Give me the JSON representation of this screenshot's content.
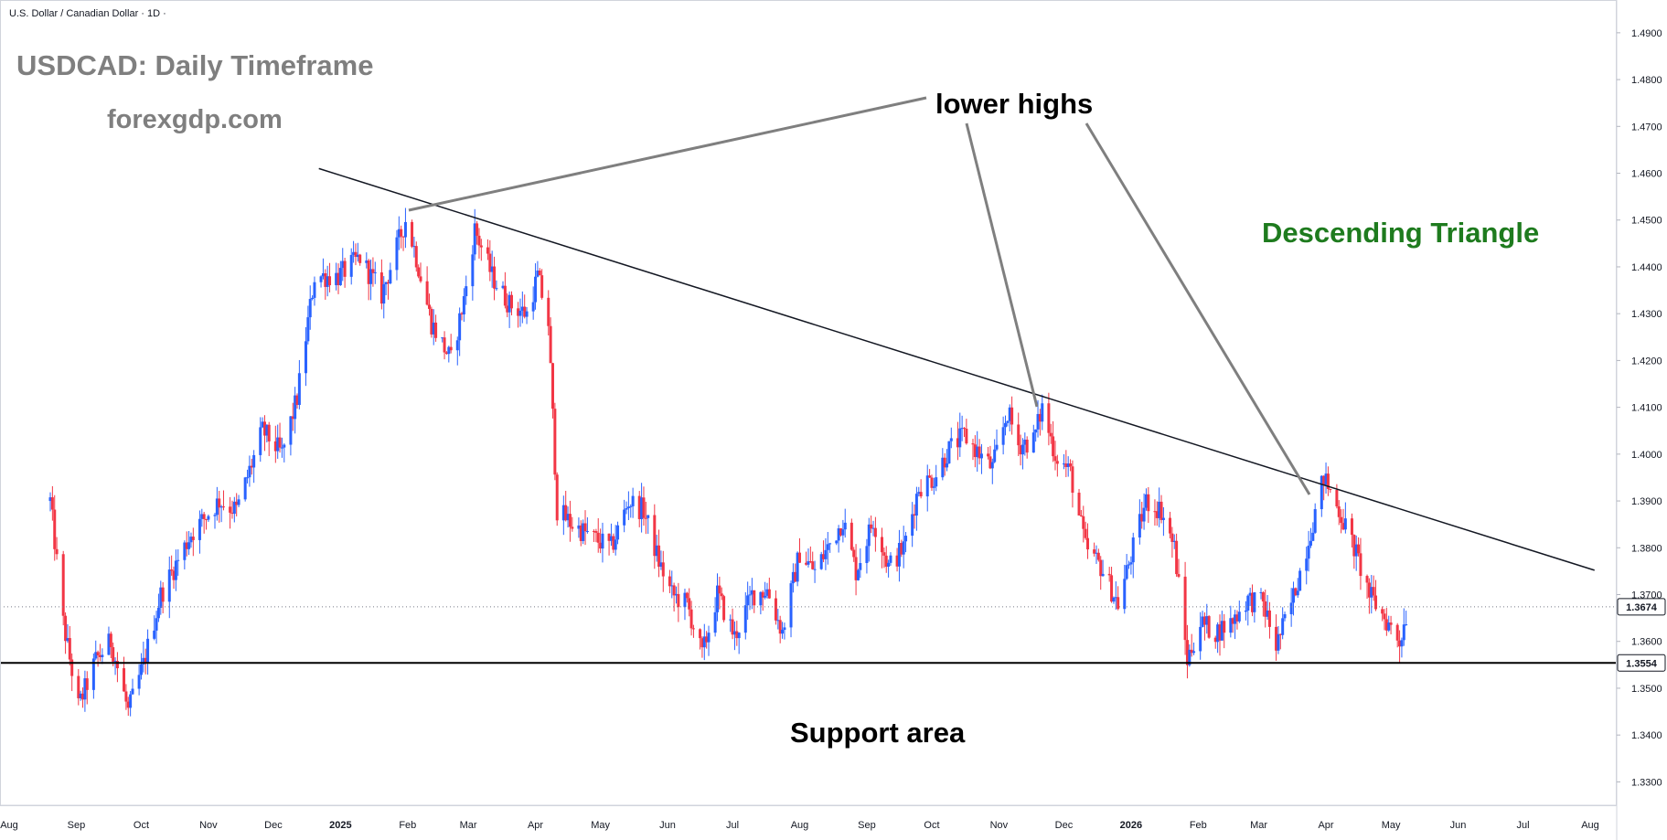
{
  "header": {
    "symbol_label": "U.S. Dollar / Canadian Dollar · 1D ·"
  },
  "annotations": {
    "title": "USDCAD: Daily Timeframe",
    "site": "forexgdp.com",
    "lower_highs": "lower highs",
    "pattern": "Descending Triangle",
    "support": "Support area"
  },
  "colors": {
    "bull": "#2962FF",
    "bear": "#F23645",
    "pattern_label": "#1E7B1E",
    "title_gray": "#7F7F7F",
    "axis_text": "#131722"
  },
  "chart_data": {
    "type": "candlestick",
    "title": "USDCAD: Daily Timeframe",
    "instrument": "U.S. Dollar / Canadian Dollar",
    "timeframe": "1D",
    "ylim": [
      1.325,
      1.497
    ],
    "y_ticks": [
      "1.4900",
      "1.4800",
      "1.4700",
      "1.4600",
      "1.4500",
      "1.4400",
      "1.4300",
      "1.4200",
      "1.4100",
      "1.4000",
      "1.3900",
      "1.3800",
      "1.3700",
      "1.3600",
      "1.3500",
      "1.3400",
      "1.3300"
    ],
    "x_ticks": [
      {
        "label": "Aug",
        "date": "2024-08-01"
      },
      {
        "label": "Sep",
        "date": "2024-09-01"
      },
      {
        "label": "Oct",
        "date": "2024-10-01"
      },
      {
        "label": "Nov",
        "date": "2024-11-01"
      },
      {
        "label": "Dec",
        "date": "2024-12-01"
      },
      {
        "label": "2025",
        "date": "2025-01-01"
      },
      {
        "label": "Feb",
        "date": "2025-02-01"
      },
      {
        "label": "Mar",
        "date": "2025-03-01"
      },
      {
        "label": "Apr",
        "date": "2025-04-01"
      },
      {
        "label": "May",
        "date": "2025-05-01"
      },
      {
        "label": "Jun",
        "date": "2025-06-01"
      },
      {
        "label": "Jul",
        "date": "2025-07-01"
      },
      {
        "label": "Aug",
        "date": "2025-08-01"
      },
      {
        "label": "Sep",
        "date": "2025-09-01"
      },
      {
        "label": "Oct",
        "date": "2025-10-01"
      },
      {
        "label": "Nov",
        "date": "2025-11-01"
      },
      {
        "label": "Dec",
        "date": "2025-12-01"
      },
      {
        "label": "2026",
        "date": "2026-01-01"
      },
      {
        "label": "Feb",
        "date": "2026-02-01"
      },
      {
        "label": "Mar",
        "date": "2026-03-01"
      },
      {
        "label": "Apr",
        "date": "2026-04-01"
      },
      {
        "label": "May",
        "date": "2026-05-01"
      },
      {
        "label": "Jun",
        "date": "2026-06-01"
      },
      {
        "label": "Jul",
        "date": "2026-07-01"
      },
      {
        "label": "Aug",
        "date": "2026-08-01"
      }
    ],
    "last_price": {
      "value": 1.3674,
      "label": "1.3674"
    },
    "support_level": {
      "value": 1.3554,
      "label": "1.3554"
    },
    "trendline": {
      "from": {
        "date": "2024-12-22",
        "price": 1.461
      },
      "to": {
        "date": "2026-08-03",
        "price": 1.3752
      }
    },
    "anchor_points": [
      {
        "date": "2024-08-20",
        "price": 1.39
      },
      {
        "date": "2024-08-26",
        "price": 1.364
      },
      {
        "date": "2024-09-02",
        "price": 1.346
      },
      {
        "date": "2024-09-10",
        "price": 1.356
      },
      {
        "date": "2024-09-17",
        "price": 1.36
      },
      {
        "date": "2024-09-25",
        "price": 1.345
      },
      {
        "date": "2024-10-02",
        "price": 1.355
      },
      {
        "date": "2024-10-10",
        "price": 1.37
      },
      {
        "date": "2024-10-24",
        "price": 1.383
      },
      {
        "date": "2024-11-06",
        "price": 1.39
      },
      {
        "date": "2024-11-14",
        "price": 1.388
      },
      {
        "date": "2024-11-26",
        "price": 1.405
      },
      {
        "date": "2024-12-05",
        "price": 1.4
      },
      {
        "date": "2024-12-12",
        "price": 1.412
      },
      {
        "date": "2024-12-20",
        "price": 1.438
      },
      {
        "date": "2024-12-31",
        "price": 1.438
      },
      {
        "date": "2025-01-10",
        "price": 1.442
      },
      {
        "date": "2025-01-20",
        "price": 1.434
      },
      {
        "date": "2025-01-31",
        "price": 1.45
      },
      {
        "date": "2025-02-04",
        "price": 1.444
      },
      {
        "date": "2025-02-12",
        "price": 1.428
      },
      {
        "date": "2025-02-21",
        "price": 1.42
      },
      {
        "date": "2025-02-27",
        "price": 1.433
      },
      {
        "date": "2025-03-04",
        "price": 1.448
      },
      {
        "date": "2025-03-12",
        "price": 1.438
      },
      {
        "date": "2025-03-20",
        "price": 1.432
      },
      {
        "date": "2025-03-28",
        "price": 1.43
      },
      {
        "date": "2025-04-02",
        "price": 1.438
      },
      {
        "date": "2025-04-07",
        "price": 1.428
      },
      {
        "date": "2025-04-11",
        "price": 1.388
      },
      {
        "date": "2025-04-18",
        "price": 1.385
      },
      {
        "date": "2025-04-28",
        "price": 1.382
      },
      {
        "date": "2025-05-06",
        "price": 1.38
      },
      {
        "date": "2025-05-14",
        "price": 1.39
      },
      {
        "date": "2025-05-21",
        "price": 1.388
      },
      {
        "date": "2025-05-28",
        "price": 1.377
      },
      {
        "date": "2025-06-03",
        "price": 1.37
      },
      {
        "date": "2025-06-10",
        "price": 1.368
      },
      {
        "date": "2025-06-17",
        "price": 1.357
      },
      {
        "date": "2025-06-24",
        "price": 1.37
      },
      {
        "date": "2025-07-02",
        "price": 1.361
      },
      {
        "date": "2025-07-10",
        "price": 1.37
      },
      {
        "date": "2025-07-17",
        "price": 1.371
      },
      {
        "date": "2025-07-24",
        "price": 1.362
      },
      {
        "date": "2025-08-01",
        "price": 1.379
      },
      {
        "date": "2025-08-08",
        "price": 1.375
      },
      {
        "date": "2025-08-14",
        "price": 1.38
      },
      {
        "date": "2025-08-21",
        "price": 1.386
      },
      {
        "date": "2025-08-27",
        "price": 1.375
      },
      {
        "date": "2025-09-04",
        "price": 1.386
      },
      {
        "date": "2025-09-11",
        "price": 1.376
      },
      {
        "date": "2025-09-18",
        "price": 1.38
      },
      {
        "date": "2025-09-25",
        "price": 1.393
      },
      {
        "date": "2025-10-02",
        "price": 1.395
      },
      {
        "date": "2025-10-09",
        "price": 1.401
      },
      {
        "date": "2025-10-16",
        "price": 1.404
      },
      {
        "date": "2025-10-23",
        "price": 1.4
      },
      {
        "date": "2025-10-29",
        "price": 1.397
      },
      {
        "date": "2025-11-05",
        "price": 1.409
      },
      {
        "date": "2025-11-10",
        "price": 1.402
      },
      {
        "date": "2025-11-17",
        "price": 1.403
      },
      {
        "date": "2025-11-21",
        "price": 1.41
      },
      {
        "date": "2025-11-27",
        "price": 1.4
      },
      {
        "date": "2025-12-04",
        "price": 1.396
      },
      {
        "date": "2025-12-11",
        "price": 1.38
      },
      {
        "date": "2025-12-18",
        "price": 1.376
      },
      {
        "date": "2025-12-26",
        "price": 1.368
      },
      {
        "date": "2026-01-02",
        "price": 1.38
      },
      {
        "date": "2026-01-08",
        "price": 1.39
      },
      {
        "date": "2026-01-15",
        "price": 1.388
      },
      {
        "date": "2026-01-21",
        "price": 1.38
      },
      {
        "date": "2026-01-27",
        "price": 1.356
      },
      {
        "date": "2026-02-02",
        "price": 1.364
      },
      {
        "date": "2026-02-09",
        "price": 1.362
      },
      {
        "date": "2026-02-16",
        "price": 1.364
      },
      {
        "date": "2026-02-24",
        "price": 1.369
      },
      {
        "date": "2026-03-03",
        "price": 1.368
      },
      {
        "date": "2026-03-09",
        "price": 1.359
      },
      {
        "date": "2026-03-16",
        "price": 1.368
      },
      {
        "date": "2026-03-23",
        "price": 1.38
      },
      {
        "date": "2026-03-31",
        "price": 1.395
      },
      {
        "date": "2026-04-07",
        "price": 1.388
      },
      {
        "date": "2026-04-14",
        "price": 1.38
      },
      {
        "date": "2026-04-21",
        "price": 1.37
      },
      {
        "date": "2026-04-28",
        "price": 1.365
      },
      {
        "date": "2026-05-05",
        "price": 1.36
      },
      {
        "date": "2026-05-09",
        "price": 1.3674
      }
    ]
  }
}
